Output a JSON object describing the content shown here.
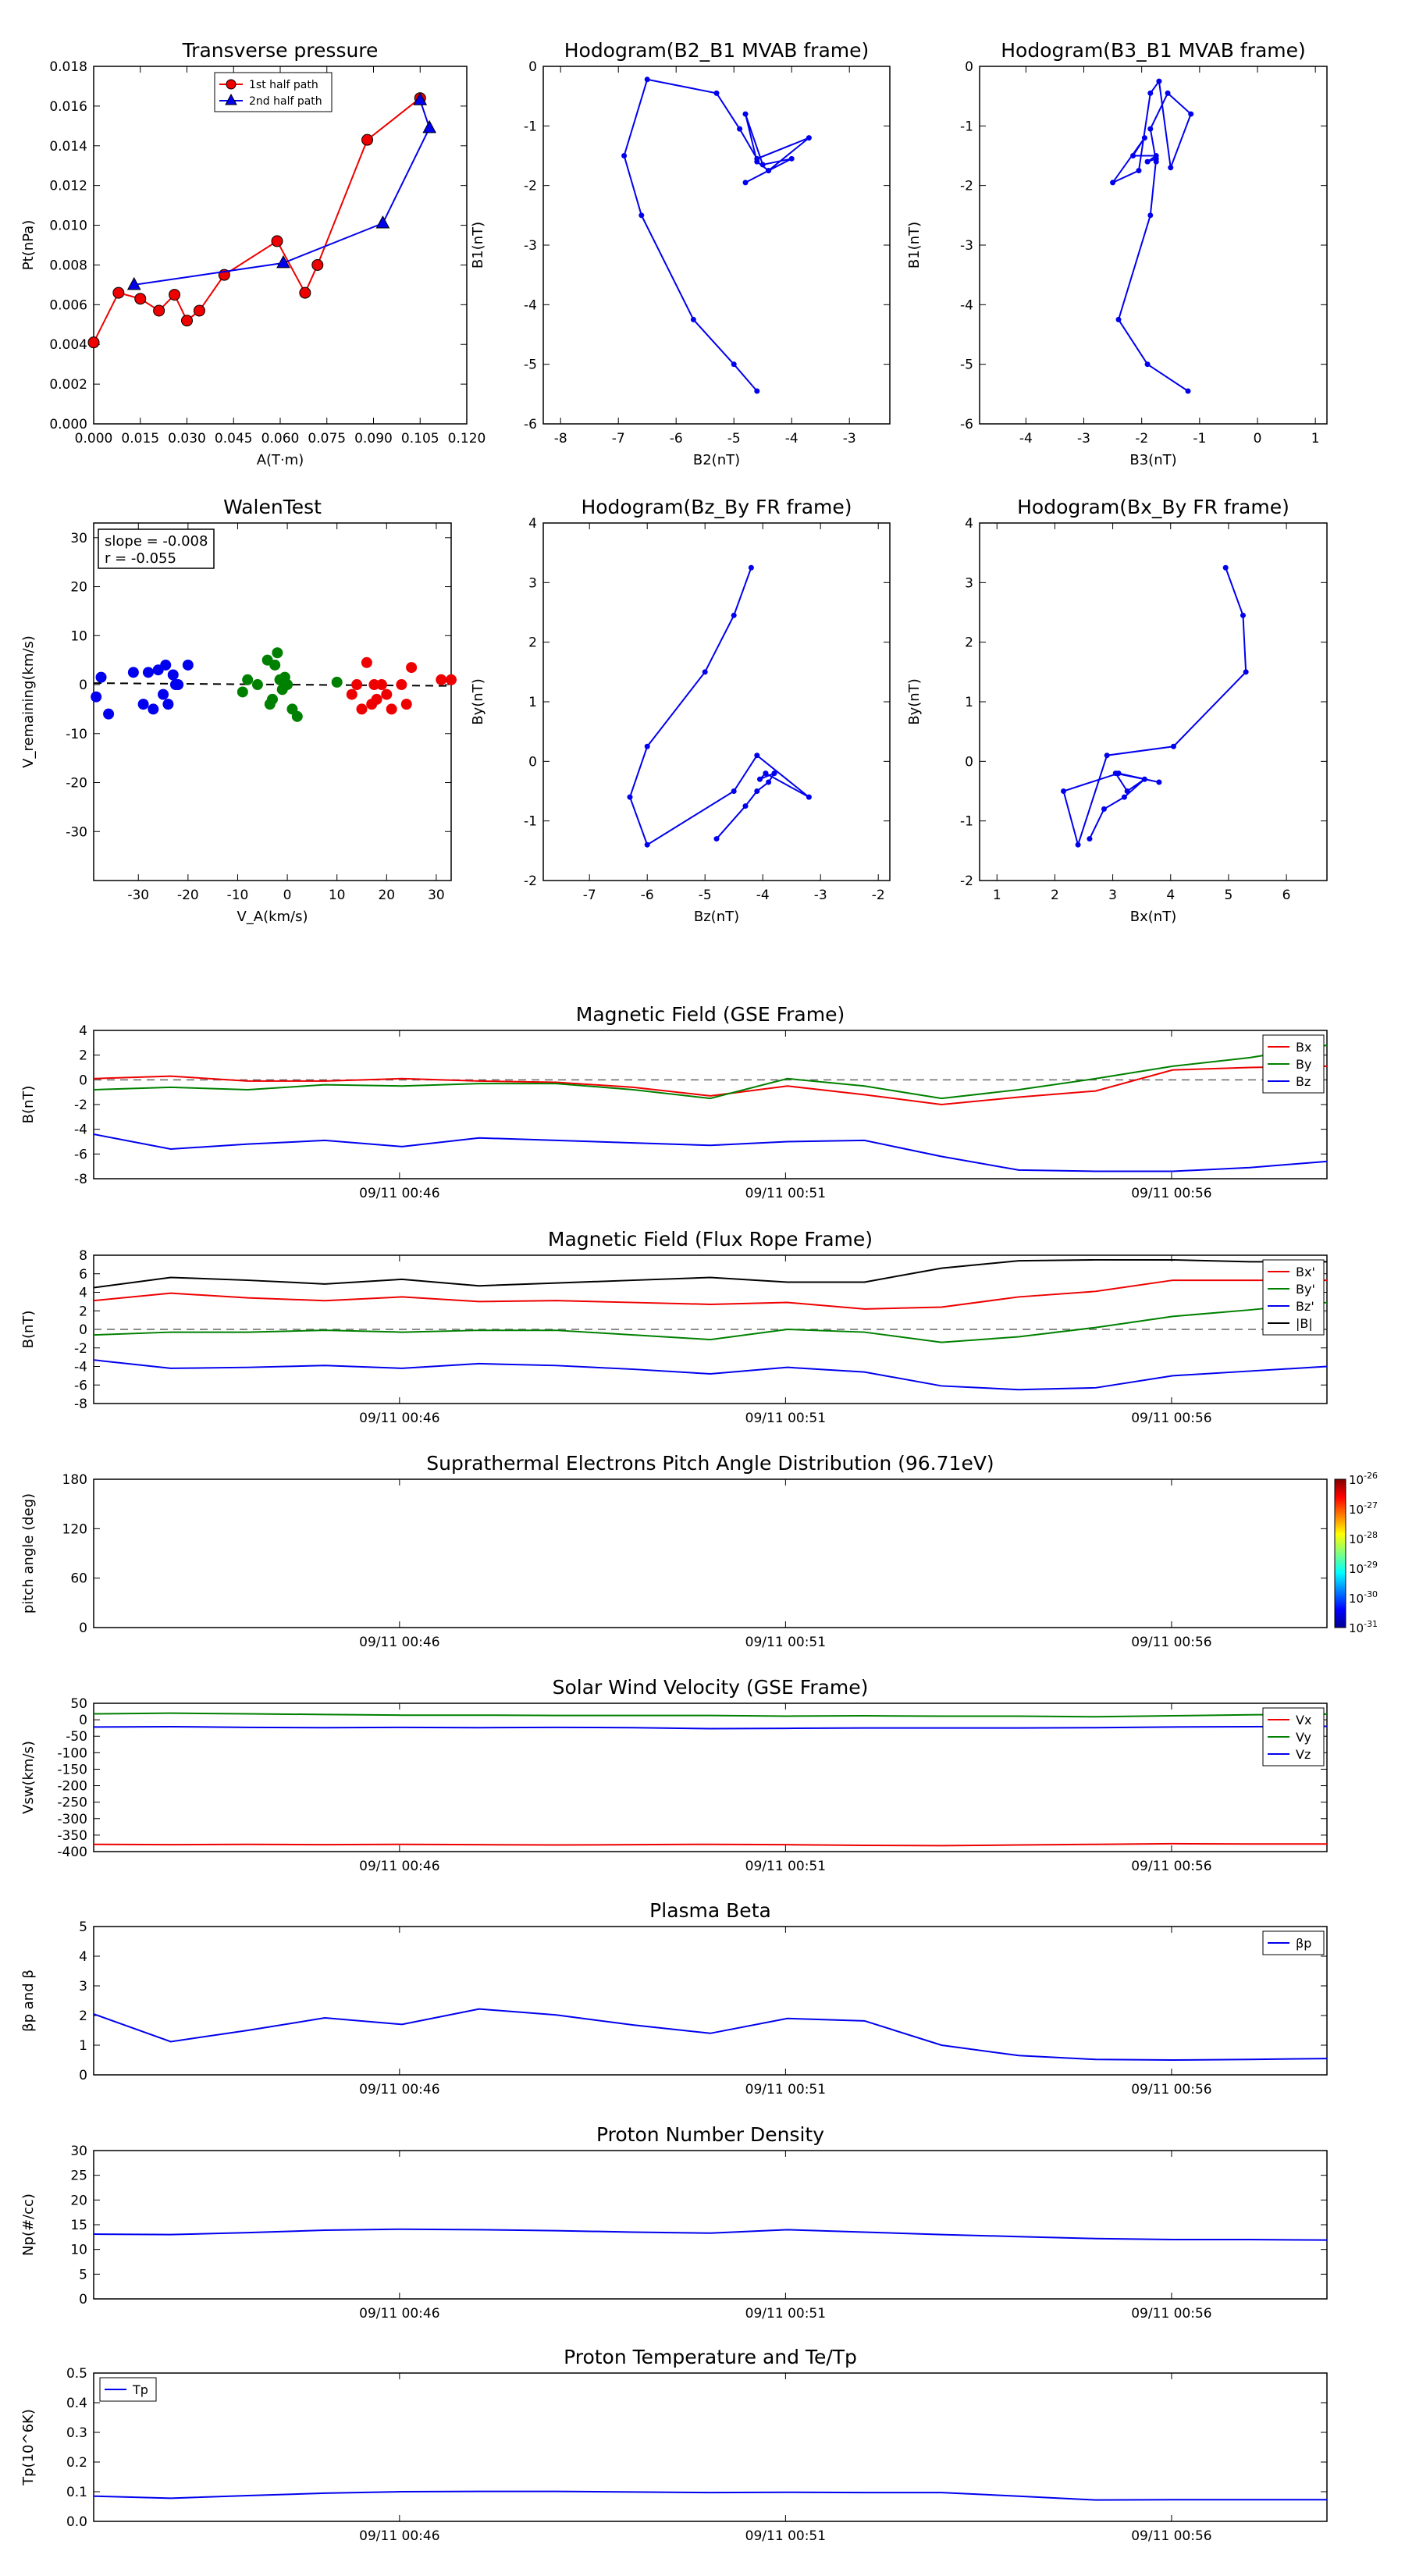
{
  "time_axis": {
    "ticks": [
      "09/11 00:46",
      "09/11 00:51",
      "09/11 00:56"
    ]
  },
  "colors": {
    "red": "#ee0000",
    "green": "#008000",
    "blue": "#0000ee",
    "black": "#000000",
    "gray": "#666666"
  },
  "chart_data": [
    {
      "id": "transverse-pressure",
      "type": "line",
      "title": "Transverse pressure",
      "xlabel": "A(T·m)",
      "ylabel": "Pt(nPa)",
      "xlim": [
        0.0,
        0.12
      ],
      "ylim": [
        0.0,
        0.018
      ],
      "xticks": [
        "0.000",
        "0.015",
        "0.030",
        "0.045",
        "0.060",
        "0.075",
        "0.090",
        "0.105",
        "0.120"
      ],
      "yticks": [
        "0.000",
        "0.002",
        "0.004",
        "0.006",
        "0.008",
        "0.010",
        "0.012",
        "0.014",
        "0.016",
        "0.018"
      ],
      "legend": "top-center",
      "series": [
        {
          "name": "1st half path",
          "color": "#ee0000",
          "marker": "circle",
          "x": [
            0.0,
            0.008,
            0.015,
            0.021,
            0.026,
            0.03,
            0.034,
            0.042,
            0.059,
            0.068,
            0.072,
            0.088,
            0.105
          ],
          "y": [
            0.0041,
            0.0066,
            0.0063,
            0.0057,
            0.0065,
            0.0052,
            0.0057,
            0.0075,
            0.0092,
            0.0066,
            0.008,
            0.0143,
            0.0164
          ]
        },
        {
          "name": "2nd half path",
          "color": "#0000ee",
          "marker": "triangle",
          "x": [
            0.013,
            0.061,
            0.093,
            0.108,
            0.105
          ],
          "y": [
            0.007,
            0.0081,
            0.0101,
            0.0149,
            0.0163
          ]
        }
      ]
    },
    {
      "id": "hodogram-b2-b1",
      "type": "line",
      "title": "Hodogram(B2_B1 MVAB frame)",
      "xlabel": "B2(nT)",
      "ylabel": "B1(nT)",
      "xlim": [
        -8.3,
        -2.3
      ],
      "ylim": [
        -6,
        0
      ],
      "xticks": [
        "-8",
        "-7",
        "-6",
        "-5",
        "-4",
        "-3"
      ],
      "yticks": [
        "-6",
        "-5",
        "-4",
        "-3",
        "-2",
        "-1",
        "0"
      ],
      "series": [
        {
          "name": "",
          "color": "#0000ee",
          "marker": "dot",
          "x": [
            -4.6,
            -5.0,
            -5.7,
            -6.6,
            -6.9,
            -6.5,
            -5.3,
            -4.9,
            -4.6,
            -3.7,
            -4.4,
            -4.6,
            -4.8,
            -4.5,
            -4.0,
            -4.8,
            -4.4
          ],
          "y": [
            -5.45,
            -5.0,
            -4.25,
            -2.5,
            -1.5,
            -0.22,
            -0.45,
            -1.05,
            -1.55,
            -1.2,
            -1.75,
            -1.6,
            -0.8,
            -1.65,
            -1.55,
            -1.95,
            -1.75
          ]
        }
      ]
    },
    {
      "id": "hodogram-b3-b1",
      "type": "line",
      "title": "Hodogram(B3_B1 MVAB frame)",
      "xlabel": "B3(nT)",
      "ylabel": "B1(nT)",
      "xlim": [
        -4.8,
        1.2
      ],
      "ylim": [
        -6,
        0
      ],
      "xticks": [
        "-4",
        "-3",
        "-2",
        "-1",
        "0",
        "1"
      ],
      "yticks": [
        "-6",
        "-5",
        "-4",
        "-3",
        "-2",
        "-1",
        "0"
      ],
      "series": [
        {
          "name": "",
          "color": "#0000ee",
          "marker": "dot",
          "x": [
            -1.2,
            -1.9,
            -2.4,
            -1.85,
            -1.75,
            -1.9,
            -1.75,
            -2.15,
            -1.95,
            -2.5,
            -2.05,
            -1.85,
            -1.7,
            -1.5,
            -1.15,
            -1.55,
            -1.85,
            -1.75
          ],
          "y": [
            -5.45,
            -5.0,
            -4.25,
            -2.5,
            -1.55,
            -1.6,
            -1.5,
            -1.5,
            -1.2,
            -1.95,
            -1.75,
            -0.45,
            -0.25,
            -1.7,
            -0.8,
            -0.45,
            -1.05,
            -1.6
          ]
        }
      ]
    },
    {
      "id": "walen-test",
      "type": "scatter",
      "title": "WalenTest",
      "xlabel": "V_A(km/s)",
      "ylabel": "V_remaining(km/s)",
      "xlim": [
        -39,
        33
      ],
      "ylim": [
        -40,
        33
      ],
      "xticks": [
        "-30",
        "-20",
        "-10",
        "0",
        "10",
        "20",
        "30"
      ],
      "yticks": [
        "-30",
        "-20",
        "-10",
        "0",
        "10",
        "20",
        "30"
      ],
      "annotation": [
        "slope = -0.008",
        "r = -0.055"
      ],
      "fit_line": {
        "slope": -0.008,
        "intercept": 0.0
      },
      "series": [
        {
          "name": "",
          "color": "#0000ee",
          "x": [
            -38.5,
            -37.5,
            -36,
            -31,
            -29,
            -28,
            -27,
            -26,
            -25,
            -24.5,
            -24,
            -23,
            -22.5,
            -22,
            -20
          ],
          "y": [
            -2.5,
            1.5,
            -6,
            2.5,
            -4,
            2.5,
            -5,
            3,
            -2,
            4,
            -4,
            2,
            0,
            0,
            4
          ]
        },
        {
          "name": "",
          "color": "#008000",
          "x": [
            -9,
            -8,
            -6,
            -4,
            -3.5,
            -3,
            -2.5,
            -2,
            -1.5,
            -1,
            -0.5,
            0,
            1,
            2,
            10
          ],
          "y": [
            -1.5,
            1,
            0,
            5,
            -4,
            -3,
            4,
            6.5,
            1,
            -1,
            1.5,
            0,
            -5,
            -6.5,
            0.5
          ]
        },
        {
          "name": "",
          "color": "#ee0000",
          "x": [
            13,
            14,
            15,
            16,
            17,
            17.5,
            18,
            19,
            20,
            21,
            23,
            24,
            25,
            31,
            33
          ],
          "y": [
            -2,
            0,
            -5,
            4.5,
            -4,
            0,
            -3,
            0,
            -2,
            -5,
            0,
            -4,
            3.5,
            1,
            1
          ]
        }
      ]
    },
    {
      "id": "hodogram-bz-by",
      "type": "line",
      "title": "Hodogram(Bz_By FR frame)",
      "xlabel": "Bz(nT)",
      "ylabel": "By(nT)",
      "xlim": [
        -7.8,
        -1.8
      ],
      "ylim": [
        -2,
        4
      ],
      "xticks": [
        "-7",
        "-6",
        "-5",
        "-4",
        "-3",
        "-2"
      ],
      "yticks": [
        "-2",
        "-1",
        "0",
        "1",
        "2",
        "3",
        "4"
      ],
      "series": [
        {
          "name": "",
          "color": "#0000ee",
          "marker": "dot",
          "x": [
            -4.2,
            -4.5,
            -5.0,
            -6.0,
            -6.3,
            -6.0,
            -4.5,
            -4.1,
            -3.2,
            -3.95,
            -4.05,
            -3.8,
            -3.9,
            -4.1,
            -4.3,
            -4.8
          ],
          "y": [
            3.25,
            2.45,
            1.5,
            0.25,
            -0.6,
            -1.4,
            -0.5,
            0.1,
            -0.6,
            -0.2,
            -0.3,
            -0.2,
            -0.35,
            -0.5,
            -0.75,
            -1.3
          ]
        }
      ]
    },
    {
      "id": "hodogram-bx-by",
      "type": "line",
      "title": "Hodogram(Bx_By FR frame)",
      "xlabel": "Bx(nT)",
      "ylabel": "By(nT)",
      "xlim": [
        0.7,
        6.7
      ],
      "ylim": [
        -2,
        4
      ],
      "xticks": [
        "1",
        "2",
        "3",
        "4",
        "5",
        "6"
      ],
      "yticks": [
        "-2",
        "-1",
        "0",
        "1",
        "2",
        "3",
        "4"
      ],
      "series": [
        {
          "name": "",
          "color": "#0000ee",
          "marker": "dot",
          "x": [
            4.95,
            5.25,
            5.3,
            4.05,
            2.9,
            2.4,
            2.15,
            3.1,
            3.8,
            3.05,
            3.25,
            3.55,
            3.2,
            2.85,
            2.6
          ],
          "y": [
            3.25,
            2.45,
            1.5,
            0.25,
            0.1,
            -1.4,
            -0.5,
            -0.2,
            -0.35,
            -0.2,
            -0.5,
            -0.3,
            -0.6,
            -0.8,
            -1.3
          ]
        }
      ]
    },
    {
      "id": "magnetic-field-gse",
      "type": "line",
      "title": "Magnetic Field (GSE Frame)",
      "ylabel": "B(nT)",
      "ylim": [
        -8,
        4
      ],
      "yticks": [
        "-8",
        "-6",
        "-4",
        "-2",
        "0",
        "2",
        "4"
      ],
      "legend": "top-right",
      "zero_line": true,
      "series": [
        {
          "name": "Bx",
          "color": "#ee0000",
          "values": [
            0.1,
            0.3,
            -0.1,
            -0.1,
            0.1,
            -0.1,
            -0.2,
            -0.6,
            -1.3,
            -0.5,
            -1.2,
            -2.0,
            -1.4,
            -0.9,
            0.8,
            1.0,
            1.1
          ]
        },
        {
          "name": "By",
          "color": "#008000",
          "values": [
            -0.8,
            -0.6,
            -0.8,
            -0.4,
            -0.5,
            -0.3,
            -0.3,
            -0.8,
            -1.5,
            0.1,
            -0.5,
            -1.5,
            -0.8,
            0.1,
            1.1,
            1.8,
            2.8
          ]
        },
        {
          "name": "Bz",
          "color": "#0000ee",
          "values": [
            -4.4,
            -5.6,
            -5.2,
            -4.9,
            -5.4,
            -4.7,
            -4.9,
            -5.1,
            -5.3,
            -5.0,
            -4.9,
            -6.2,
            -7.3,
            -7.4,
            -7.4,
            -7.1,
            -6.6
          ]
        }
      ]
    },
    {
      "id": "magnetic-field-fr",
      "type": "line",
      "title": "Magnetic Field (Flux Rope Frame)",
      "ylabel": "B(nT)",
      "ylim": [
        -8,
        8
      ],
      "yticks": [
        "-8",
        "-6",
        "-4",
        "-2",
        "0",
        "2",
        "4",
        "6",
        "8"
      ],
      "legend": "top-right",
      "zero_line": true,
      "series": [
        {
          "name": "Bx'",
          "color": "#ee0000",
          "values": [
            3.1,
            3.9,
            3.4,
            3.1,
            3.5,
            3.0,
            3.1,
            2.9,
            2.7,
            2.9,
            2.2,
            2.4,
            3.5,
            4.1,
            5.3,
            5.3,
            5.3
          ]
        },
        {
          "name": "By'",
          "color": "#008000",
          "values": [
            -0.6,
            -0.3,
            -0.3,
            -0.1,
            -0.3,
            -0.1,
            -0.1,
            -0.6,
            -1.1,
            0.0,
            -0.3,
            -1.4,
            -0.8,
            0.2,
            1.4,
            2.1,
            2.9
          ]
        },
        {
          "name": "Bz'",
          "color": "#0000ee",
          "values": [
            -3.3,
            -4.2,
            -4.1,
            -3.9,
            -4.2,
            -3.7,
            -3.9,
            -4.3,
            -4.8,
            -4.1,
            -4.6,
            -6.1,
            -6.5,
            -6.3,
            -5.0,
            -4.5,
            -4.0
          ]
        },
        {
          "name": "|B|",
          "color": "#000000",
          "values": [
            4.5,
            5.6,
            5.3,
            4.9,
            5.4,
            4.7,
            5.0,
            5.3,
            5.6,
            5.1,
            5.1,
            6.6,
            7.4,
            7.5,
            7.5,
            7.3,
            7.3
          ]
        }
      ]
    },
    {
      "id": "pitch-angle",
      "type": "heatmap",
      "title": "Suprathermal Electrons Pitch Angle Distribution (96.71eV)",
      "ylabel": "pitch angle (deg)",
      "ylim": [
        0,
        180
      ],
      "yticks": [
        "0",
        "60",
        "120",
        "180"
      ],
      "colorbar_ticks": [
        "10^-31",
        "10^-30",
        "10^-29",
        "10^-28",
        "10^-27",
        "10^-26"
      ],
      "values": []
    },
    {
      "id": "solar-wind-velocity",
      "type": "line",
      "title": "Solar Wind Velocity (GSE Frame)",
      "ylabel": "Vsw(km/s)",
      "ylim": [
        -400,
        50
      ],
      "yticks": [
        "-400",
        "-350",
        "-300",
        "-250",
        "-200",
        "-150",
        "-100",
        "-50",
        "0",
        "50"
      ],
      "legend": "top-right",
      "series": [
        {
          "name": "Vx",
          "color": "#ee0000",
          "values": [
            -378,
            -379,
            -378,
            -379,
            -378,
            -379,
            -380,
            -379,
            -378,
            -379,
            -381,
            -382,
            -380,
            -378,
            -376,
            -377,
            -377
          ]
        },
        {
          "name": "Vy",
          "color": "#008000",
          "values": [
            18,
            20,
            18,
            16,
            14,
            14,
            13,
            13,
            13,
            11,
            12,
            11,
            11,
            9,
            12,
            15,
            17
          ]
        },
        {
          "name": "Vz",
          "color": "#0000ee",
          "values": [
            -22,
            -21,
            -23,
            -24,
            -23,
            -24,
            -23,
            -24,
            -27,
            -26,
            -25,
            -25,
            -25,
            -24,
            -22,
            -21,
            -20
          ]
        }
      ]
    },
    {
      "id": "plasma-beta",
      "type": "line",
      "title": "Plasma Beta",
      "ylabel": "βp and β",
      "ylim": [
        0,
        5
      ],
      "yticks": [
        "0",
        "1",
        "2",
        "3",
        "4",
        "5"
      ],
      "legend": "top-right",
      "series": [
        {
          "name": "βp",
          "color": "#0000ee",
          "values": [
            2.05,
            1.12,
            1.5,
            1.92,
            1.7,
            2.22,
            2.02,
            1.68,
            1.4,
            1.9,
            1.82,
            1.0,
            0.65,
            0.52,
            0.5,
            0.52,
            0.55
          ]
        }
      ]
    },
    {
      "id": "proton-density",
      "type": "line",
      "title": "Proton Number Density",
      "ylabel": "Np(#/cc)",
      "ylim": [
        0,
        30
      ],
      "yticks": [
        "0",
        "5",
        "10",
        "15",
        "20",
        "25",
        "30"
      ],
      "series": [
        {
          "name": "",
          "color": "#0000ee",
          "values": [
            13.1,
            13.0,
            13.4,
            13.9,
            14.1,
            14.0,
            13.8,
            13.5,
            13.3,
            14.0,
            13.5,
            13.0,
            12.6,
            12.2,
            12.0,
            12.0,
            11.9
          ]
        }
      ]
    },
    {
      "id": "proton-temperature",
      "type": "line",
      "title": "Proton Temperature and Te/Tp",
      "ylabel": "Tp(10^6K)",
      "ylim": [
        0,
        0.5
      ],
      "yticks": [
        "0.0",
        "0.1",
        "0.2",
        "0.3",
        "0.4",
        "0.5"
      ],
      "legend": "top-left",
      "series": [
        {
          "name": "Tp",
          "color": "#0000ee",
          "values": [
            0.085,
            0.078,
            0.087,
            0.095,
            0.1,
            0.101,
            0.101,
            0.099,
            0.097,
            0.098,
            0.097,
            0.097,
            0.085,
            0.072,
            0.073,
            0.073,
            0.073
          ]
        }
      ]
    }
  ]
}
